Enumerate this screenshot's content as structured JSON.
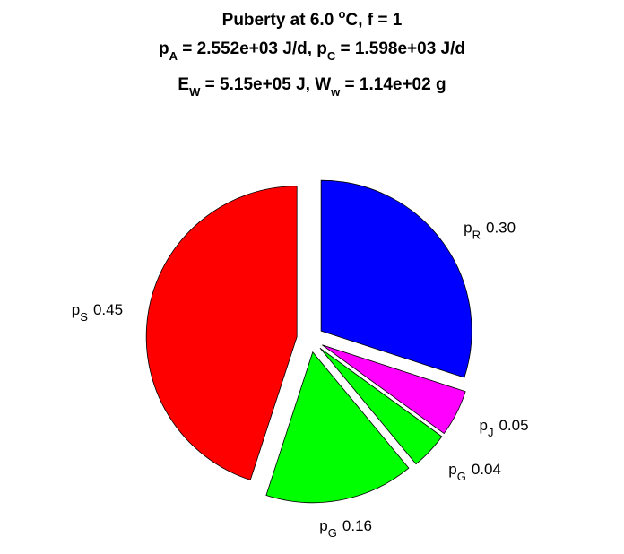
{
  "chart_data": {
    "type": "pie",
    "title": [
      [
        "Puberty at 6.0 ",
        {
          "sup": "o"
        },
        "C, f = 1"
      ],
      [
        "p",
        {
          "sub": "A"
        },
        " = 2.552e+03 J/d,  p",
        {
          "sub": "C"
        },
        " = 1.598e+03 J/d"
      ],
      [
        "E",
        {
          "sub": "W"
        },
        " = 5.15e+05 J, W",
        {
          "sub": "w"
        },
        " = 1.14e+02 g"
      ]
    ],
    "labels": [
      {
        "base": "p",
        "sub": "R"
      },
      {
        "base": "p",
        "sub": "J"
      },
      {
        "base": "p",
        "sub": "G"
      },
      {
        "base": "p",
        "sub": "G"
      },
      {
        "base": "p",
        "sub": "S"
      }
    ],
    "values": [
      0.3,
      0.05,
      0.04,
      0.16,
      0.45
    ],
    "value_labels": [
      "0.30",
      "0.05",
      "0.04",
      "0.16",
      "0.45"
    ],
    "colors": [
      "#0000ff",
      "#ff00ff",
      "#00ff00",
      "#00ff00",
      "#ff0000"
    ],
    "exploded": true
  }
}
